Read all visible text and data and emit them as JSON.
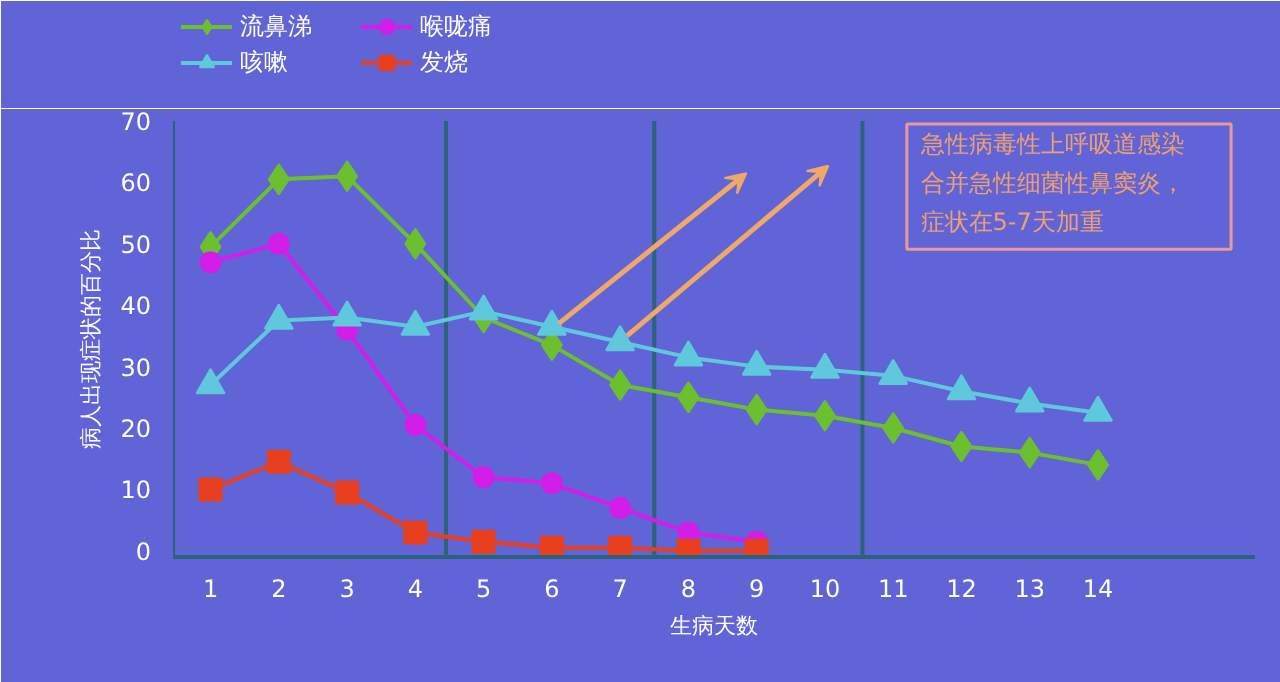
{
  "chart_data": {
    "type": "line",
    "xlabel": "生病天数",
    "ylabel": "病人出现症状的百分比",
    "x": [
      1,
      2,
      3,
      4,
      5,
      6,
      7,
      8,
      9,
      10,
      11,
      12,
      13,
      14
    ],
    "series": [
      {
        "name": "流鼻涕",
        "color": "#6cbf2e",
        "marker": "diamond",
        "values": [
          49.5,
          60.5,
          61,
          50,
          38,
          33.5,
          27,
          25,
          23,
          22,
          20,
          17,
          16,
          14
        ]
      },
      {
        "name": "喉咙痛",
        "color": "#d21ee8",
        "marker": "circle",
        "values": [
          47,
          50,
          36,
          20.5,
          12,
          11,
          7,
          3,
          1.5,
          null,
          null,
          null,
          null,
          null
        ]
      },
      {
        "name": "咳嗽",
        "color": "#5fc8dc",
        "marker": "triangle",
        "values": [
          27,
          37.5,
          38,
          36.5,
          39,
          36.5,
          34,
          31.5,
          30,
          29.5,
          28.5,
          26,
          24,
          22.5
        ]
      },
      {
        "name": "发烧",
        "color": "#e8401e",
        "marker": "square",
        "values": [
          10,
          14.5,
          9.5,
          3,
          1.5,
          0.5,
          0.5,
          0,
          0,
          null,
          null,
          null,
          null,
          null
        ]
      }
    ],
    "xlim": [
      0.45,
      16.3
    ],
    "ylim": [
      -1,
      70
    ],
    "xticks": [
      1,
      2,
      3,
      4,
      5,
      6,
      7,
      8,
      9,
      10,
      11,
      12,
      13,
      14
    ],
    "yticks": [
      0,
      10,
      20,
      30,
      40,
      50,
      60,
      70
    ],
    "ref_lines": [
      {
        "axis": "x",
        "value": 4.45,
        "color": "#2a6478"
      },
      {
        "axis": "x",
        "value": 7.5,
        "color": "#2a6478"
      },
      {
        "axis": "x",
        "value": 10.55,
        "color": "#2a6478"
      }
    ],
    "annotations": [
      "急性病毒性上呼吸道感染合并急性细菌性鼻窦炎，症状在5-7天加重"
    ],
    "grid": false,
    "legend": "top left"
  }
}
